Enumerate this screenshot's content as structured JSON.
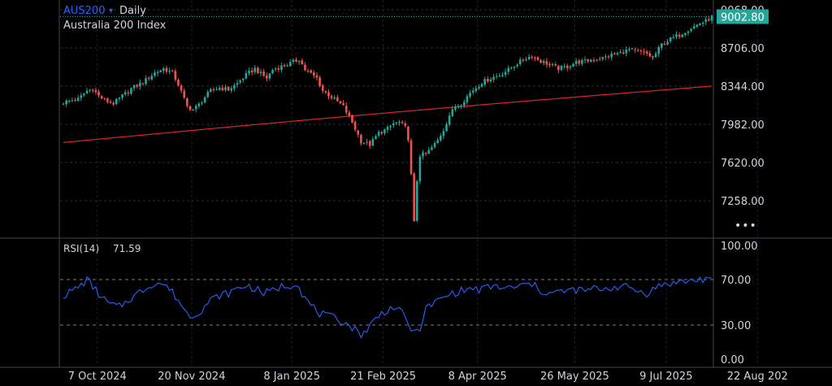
{
  "header": {
    "symbol": "AUS200",
    "symbol_caret": "▾",
    "interval": "Daily",
    "description": "Australia 200 Index"
  },
  "price_scale": {
    "ticks": [
      "9068.00",
      "8706.00",
      "8344.00",
      "7982.00",
      "7620.00",
      "7258.00"
    ],
    "last_price_label": "9002.80",
    "more_label": "•••"
  },
  "rsi": {
    "label": "RSI(14)",
    "value": "71.59",
    "ticks": [
      "100.00",
      "70.00",
      "30.00",
      "0.00"
    ]
  },
  "time_axis": {
    "labels": [
      "7 Oct 2024",
      "20 Nov 2024",
      "8 Jan 2025",
      "21 Feb 2025",
      "8 Apr 2025",
      "26 May 2025",
      "9 Jul 2025",
      "22 Aug 202"
    ]
  },
  "colors": {
    "up": "#26a69a",
    "down": "#ef5350",
    "moving_average": "#e02424",
    "rsi_line": "#2962ff",
    "symbol_text": "#2962ff",
    "last_price_bg": "#26a69a",
    "grid": "#2a2e39"
  },
  "chart_data": [
    {
      "type": "candlestick",
      "title": "AUS200 · Daily — Australia 200 Index",
      "xlabel": "",
      "ylabel": "",
      "ylim": [
        6950,
        9090
      ],
      "grid": true,
      "date_ticks": [
        {
          "label": "7 Oct 2024",
          "index": 6
        },
        {
          "label": "20 Nov 2024",
          "index": 38
        },
        {
          "label": "8 Jan 2025",
          "index": 72
        },
        {
          "label": "21 Feb 2025",
          "index": 103
        },
        {
          "label": "8 Apr 2025",
          "index": 135
        },
        {
          "label": "26 May 2025",
          "index": 168
        },
        {
          "label": "9 Jul 2025",
          "index": 199
        },
        {
          "label": "22 Aug 202",
          "index": 230
        }
      ],
      "waypoints": [
        [
          0,
          8190
        ],
        [
          5,
          8220
        ],
        [
          8,
          8300
        ],
        [
          10,
          8320
        ],
        [
          12,
          8250
        ],
        [
          14,
          8210
        ],
        [
          17,
          8180
        ],
        [
          20,
          8250
        ],
        [
          23,
          8320
        ],
        [
          27,
          8380
        ],
        [
          31,
          8470
        ],
        [
          34,
          8510
        ],
        [
          37,
          8470
        ],
        [
          39,
          8360
        ],
        [
          42,
          8150
        ],
        [
          44,
          8120
        ],
        [
          46,
          8170
        ],
        [
          48,
          8240
        ],
        [
          50,
          8300
        ],
        [
          53,
          8330
        ],
        [
          56,
          8310
        ],
        [
          59,
          8370
        ],
        [
          62,
          8450
        ],
        [
          65,
          8510
        ],
        [
          67,
          8460
        ],
        [
          69,
          8420
        ],
        [
          71,
          8500
        ],
        [
          74,
          8530
        ],
        [
          77,
          8560
        ],
        [
          80,
          8600
        ],
        [
          82,
          8500
        ],
        [
          84,
          8460
        ],
        [
          86,
          8420
        ],
        [
          88,
          8300
        ],
        [
          90,
          8260
        ],
        [
          92,
          8220
        ],
        [
          95,
          8150
        ],
        [
          98,
          8000
        ],
        [
          101,
          7820
        ],
        [
          104,
          7790
        ],
        [
          107,
          7900
        ],
        [
          110,
          7940
        ],
        [
          112,
          7990
        ],
        [
          114,
          8000
        ],
        [
          116,
          7950
        ],
        [
          117,
          7850
        ],
        [
          118,
          7500
        ],
        [
          119,
          7050
        ],
        [
          120,
          7450
        ],
        [
          121,
          7690
        ],
        [
          123,
          7700
        ],
        [
          125,
          7760
        ],
        [
          127,
          7830
        ],
        [
          129,
          7930
        ],
        [
          131,
          8070
        ],
        [
          133,
          8150
        ],
        [
          135,
          8180
        ],
        [
          138,
          8280
        ],
        [
          142,
          8380
        ],
        [
          145,
          8420
        ],
        [
          148,
          8450
        ],
        [
          151,
          8500
        ],
        [
          154,
          8560
        ],
        [
          157,
          8610
        ],
        [
          159,
          8630
        ],
        [
          162,
          8580
        ],
        [
          165,
          8550
        ],
        [
          168,
          8510
        ],
        [
          171,
          8530
        ],
        [
          174,
          8570
        ],
        [
          177,
          8580
        ],
        [
          180,
          8600
        ],
        [
          183,
          8610
        ],
        [
          186,
          8640
        ],
        [
          189,
          8660
        ],
        [
          192,
          8690
        ],
        [
          195,
          8670
        ],
        [
          198,
          8650
        ],
        [
          200,
          8610
        ],
        [
          203,
          8740
        ],
        [
          206,
          8790
        ],
        [
          209,
          8830
        ],
        [
          212,
          8880
        ],
        [
          214,
          8910
        ],
        [
          216,
          8940
        ],
        [
          218,
          8960
        ],
        [
          220,
          9000
        ]
      ],
      "series": [
        {
          "name": "",
          "kind": "moving_average",
          "start": 7810,
          "end": 8344,
          "mid": 8105
        }
      ]
    },
    {
      "type": "line",
      "title": "RSI(14) 71.59",
      "ylim": [
        0,
        100
      ],
      "levels": [
        70,
        30
      ],
      "waypoints": [
        [
          0,
          56
        ],
        [
          3,
          60
        ],
        [
          6,
          65
        ],
        [
          8,
          70
        ],
        [
          10,
          64
        ],
        [
          13,
          54
        ],
        [
          16,
          48
        ],
        [
          19,
          46
        ],
        [
          22,
          52
        ],
        [
          26,
          59
        ],
        [
          30,
          66
        ],
        [
          33,
          67
        ],
        [
          36,
          62
        ],
        [
          39,
          52
        ],
        [
          42,
          40
        ],
        [
          44,
          38
        ],
        [
          47,
          44
        ],
        [
          50,
          52
        ],
        [
          53,
          56
        ],
        [
          56,
          58
        ],
        [
          59,
          62
        ],
        [
          62,
          65
        ],
        [
          65,
          62
        ],
        [
          68,
          58
        ],
        [
          71,
          60
        ],
        [
          74,
          64
        ],
        [
          77,
          65
        ],
        [
          79,
          68
        ],
        [
          81,
          58
        ],
        [
          83,
          50
        ],
        [
          85,
          45
        ],
        [
          87,
          40
        ],
        [
          89,
          38
        ],
        [
          92,
          36
        ],
        [
          95,
          33
        ],
        [
          98,
          28
        ],
        [
          101,
          22
        ],
        [
          103,
          26
        ],
        [
          106,
          36
        ],
        [
          109,
          42
        ],
        [
          112,
          46
        ],
        [
          115,
          40
        ],
        [
          117,
          32
        ],
        [
          119,
          22
        ],
        [
          121,
          28
        ],
        [
          123,
          44
        ],
        [
          126,
          50
        ],
        [
          129,
          54
        ],
        [
          132,
          58
        ],
        [
          135,
          60
        ],
        [
          138,
          62
        ],
        [
          141,
          61
        ],
        [
          144,
          63
        ],
        [
          147,
          64
        ],
        [
          150,
          62
        ],
        [
          153,
          63
        ],
        [
          156,
          65
        ],
        [
          159,
          66
        ],
        [
          162,
          60
        ],
        [
          165,
          58
        ],
        [
          168,
          59
        ],
        [
          171,
          60
        ],
        [
          174,
          61
        ],
        [
          177,
          60
        ],
        [
          180,
          62
        ],
        [
          183,
          62
        ],
        [
          186,
          63
        ],
        [
          189,
          64
        ],
        [
          192,
          63
        ],
        [
          195,
          60
        ],
        [
          198,
          58
        ],
        [
          201,
          63
        ],
        [
          204,
          66
        ],
        [
          207,
          67
        ],
        [
          210,
          68
        ],
        [
          213,
          69
        ],
        [
          216,
          70
        ],
        [
          218,
          71
        ],
        [
          220,
          71.59
        ]
      ]
    }
  ]
}
